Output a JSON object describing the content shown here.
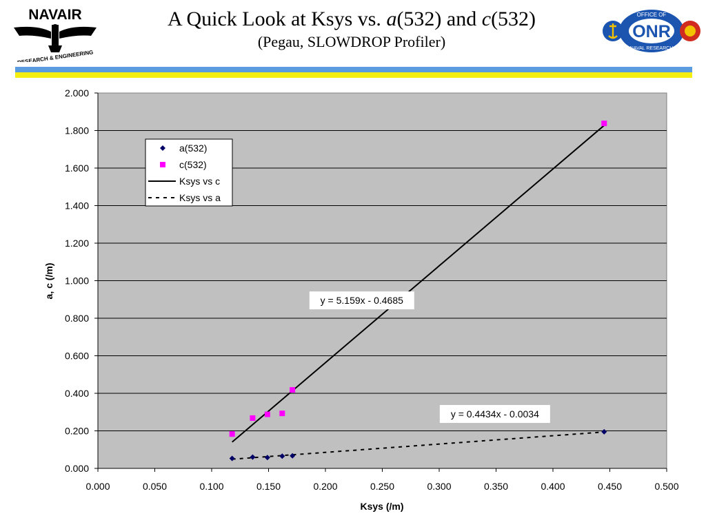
{
  "header": {
    "title_prefix": "A Quick Look at Ksys vs. ",
    "title_a": "a",
    "title_mid": "(532) and ",
    "title_c": "c",
    "title_suffix": "(532)",
    "subtitle": "(Pegau, SLOWDROP Profiler)",
    "left_logo": {
      "name": "NAVAIR",
      "caption": "RESEARCH & ENGINEERING"
    },
    "right_logo": {
      "top": "OFFICE OF",
      "name": "ONR",
      "bottom": "NAVAL RESEARCH"
    }
  },
  "colors": {
    "plot_bg": "#c0c0c0",
    "a_series": "#000066",
    "c_series": "#ff00ff",
    "stripe_blue": "#5b9be0",
    "stripe_yellow": "#f4ef10"
  },
  "chart_data": {
    "type": "scatter",
    "xlabel": "Ksys (/m)",
    "ylabel": "a, c (/m)",
    "xlim": [
      0.0,
      0.5
    ],
    "ylim": [
      0.0,
      2.0
    ],
    "x_ticks": [
      "0.000",
      "0.050",
      "0.100",
      "0.150",
      "0.200",
      "0.250",
      "0.300",
      "0.350",
      "0.400",
      "0.450",
      "0.500"
    ],
    "y_ticks": [
      "0.000",
      "0.200",
      "0.400",
      "0.600",
      "0.800",
      "1.000",
      "1.200",
      "1.400",
      "1.600",
      "1.800",
      "2.000"
    ],
    "grid": "horizontal",
    "legend_position": "top-left",
    "series": [
      {
        "name": "a(532)",
        "marker": "diamond",
        "points": [
          [
            0.118,
            0.053
          ],
          [
            0.136,
            0.06
          ],
          [
            0.149,
            0.058
          ],
          [
            0.162,
            0.065
          ],
          [
            0.171,
            0.067
          ],
          [
            0.445,
            0.195
          ]
        ]
      },
      {
        "name": "c(532)",
        "marker": "square",
        "points": [
          [
            0.118,
            0.183
          ],
          [
            0.136,
            0.268
          ],
          [
            0.149,
            0.288
          ],
          [
            0.162,
            0.293
          ],
          [
            0.171,
            0.418
          ],
          [
            0.445,
            1.838
          ]
        ]
      }
    ],
    "trendlines": [
      {
        "name": "Ksys vs c",
        "style": "solid",
        "slope": 5.159,
        "intercept": -0.4685,
        "x_range": [
          0.118,
          0.445
        ],
        "equation": "y = 5.159x - 0.4685",
        "label_at": [
          0.232,
          0.895
        ]
      },
      {
        "name": "Ksys vs a",
        "style": "dashed",
        "slope": 0.4434,
        "intercept": -0.0034,
        "x_range": [
          0.118,
          0.445
        ],
        "equation": "y = 0.4434x - 0.0034",
        "label_at": [
          0.349,
          0.29
        ]
      }
    ],
    "legend": [
      "a(532)",
      "c(532)",
      "Ksys vs c",
      "Ksys vs a"
    ]
  }
}
